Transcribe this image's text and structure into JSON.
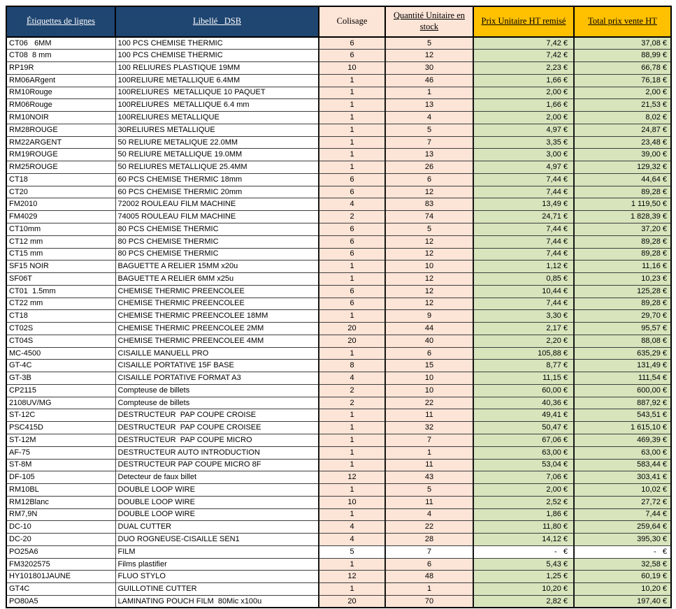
{
  "table": {
    "columns": [
      {
        "label": "Étiquettes de lignes"
      },
      {
        "label": "Libellé _DSB"
      },
      {
        "label": "Colisage"
      },
      {
        "label": "Quantité Unitaire en stock"
      },
      {
        "label": "Prix Unitaire HT remisé"
      },
      {
        "label": "Total prix vente HT"
      }
    ],
    "colors": {
      "header_navy": "#1F4571",
      "header_peach": "#FCE4D6",
      "header_gold": "#FFC000",
      "cell_peach": "#FCE4D6",
      "cell_green": "#D7E4BC"
    },
    "rows": [
      {
        "code": "CT06   6MM",
        "libelle": "100 PCS CHEMISE THERMIC",
        "colisage": "6",
        "quantite": "5",
        "prix": "7,42 €",
        "total": "37,08 €"
      },
      {
        "code": "CT08  8 mm",
        "libelle": "100 PCS CHEMISE THERMIC",
        "colisage": "6",
        "quantite": "12",
        "prix": "7,42 €",
        "total": "88,99 €"
      },
      {
        "code": "RP19R",
        "libelle": "100 RELIURES PLASTIQUE 19MM",
        "colisage": "10",
        "quantite": "30",
        "prix": "2,23 €",
        "total": "66,78 €"
      },
      {
        "code": "RM06ARgent",
        "libelle": "100RELIURE METALLIQUE 6.4MM",
        "colisage": "1",
        "quantite": "46",
        "prix": "1,66 €",
        "total": "76,18 €"
      },
      {
        "code": "RM10Rouge",
        "libelle": "100RELIURES  METALLIQUE 10 PAQUET",
        "colisage": "1",
        "quantite": "1",
        "prix": "2,00 €",
        "total": "2,00 €"
      },
      {
        "code": "RM06Rouge",
        "libelle": "100RELIURES  METALLIQUE 6.4 mm",
        "colisage": "1",
        "quantite": "13",
        "prix": "1,66 €",
        "total": "21,53 €"
      },
      {
        "code": "RM10NOIR",
        "libelle": "100RELIURES METALLIQUE",
        "colisage": "1",
        "quantite": "4",
        "prix": "2,00 €",
        "total": "8,02 €"
      },
      {
        "code": "RM28ROUGE",
        "libelle": "30RELIURES METALLIQUE",
        "colisage": "1",
        "quantite": "5",
        "prix": "4,97 €",
        "total": "24,87 €"
      },
      {
        "code": "RM22ARGENT",
        "libelle": "50 RELIURE METALIQUE 22.0MM",
        "colisage": "1",
        "quantite": "7",
        "prix": "3,35 €",
        "total": "23,48 €"
      },
      {
        "code": "RM19ROUGE",
        "libelle": "50 RELIURE METALLIQUE 19.0MM",
        "colisage": "1",
        "quantite": "13",
        "prix": "3,00 €",
        "total": "39,00 €"
      },
      {
        "code": "RM25ROUGE",
        "libelle": "50 RELIURES METALLIQUE 25.4MM",
        "colisage": "1",
        "quantite": "26",
        "prix": "4,97 €",
        "total": "129,32 €"
      },
      {
        "code": "CT18",
        "libelle": "60 PCS CHEMISE THERMIC 18mm",
        "colisage": "6",
        "quantite": "6",
        "prix": "7,44 €",
        "total": "44,64 €"
      },
      {
        "code": "CT20",
        "libelle": "60 PCS CHEMISE THERMIC 20mm",
        "colisage": "6",
        "quantite": "12",
        "prix": "7,44 €",
        "total": "89,28 €"
      },
      {
        "code": "FM2010",
        "libelle": "72002 ROULEAU FILM MACHINE",
        "colisage": "4",
        "quantite": "83",
        "prix": "13,49 €",
        "total": "1 119,50 €"
      },
      {
        "code": "FM4029",
        "libelle": "74005 ROULEAU FILM MACHINE",
        "colisage": "2",
        "quantite": "74",
        "prix": "24,71 €",
        "total": "1 828,39 €"
      },
      {
        "code": "CT10mm",
        "libelle": "80 PCS CHEMISE THERMIC",
        "colisage": "6",
        "quantite": "5",
        "prix": "7,44 €",
        "total": "37,20 €"
      },
      {
        "code": "CT12 mm",
        "libelle": "80 PCS CHEMISE THERMIC",
        "colisage": "6",
        "quantite": "12",
        "prix": "7,44 €",
        "total": "89,28 €"
      },
      {
        "code": "CT15 mm",
        "libelle": "80 PCS CHEMISE THERMIC",
        "colisage": "6",
        "quantite": "12",
        "prix": "7,44 €",
        "total": "89,28 €"
      },
      {
        "code": "SF15 NOIR",
        "libelle": "BAGUETTE A RELIER 15MM x20u",
        "colisage": "1",
        "quantite": "10",
        "prix": "1,12 €",
        "total": "11,16 €"
      },
      {
        "code": "SF06T",
        "libelle": "BAGUETTE A RELIER 6MM x25u",
        "colisage": "1",
        "quantite": "12",
        "prix": "0,85 €",
        "total": "10,23 €"
      },
      {
        "code": "CT01  1.5mm",
        "libelle": "CHEMISE THERMIC PREENCOLEE",
        "colisage": "6",
        "quantite": "12",
        "prix": "10,44 €",
        "total": "125,28 €"
      },
      {
        "code": "CT22 mm",
        "libelle": "CHEMISE THERMIC PREENCOLEE",
        "colisage": "6",
        "quantite": "12",
        "prix": "7,44 €",
        "total": "89,28 €"
      },
      {
        "code": "CT18",
        "libelle": "CHEMISE THERMIC PREENCOLEE 18MM",
        "colisage": "1",
        "quantite": "9",
        "prix": "3,30 €",
        "total": "29,70 €"
      },
      {
        "code": "CT02S",
        "libelle": "CHEMISE THERMIC PREENCOLEE 2MM",
        "colisage": "20",
        "quantite": "44",
        "prix": "2,17 €",
        "total": "95,57 €"
      },
      {
        "code": "CT04S",
        "libelle": "CHEMISE THERMIC PREENCOLEE 4MM",
        "colisage": "20",
        "quantite": "40",
        "prix": "2,20 €",
        "total": "88,08 €"
      },
      {
        "code": "MC-4500",
        "libelle": "CISAILLE MANUELL PRO",
        "colisage": "1",
        "quantite": "6",
        "prix": "105,88 €",
        "total": "635,29 €"
      },
      {
        "code": "GT-4C",
        "libelle": "CISAILLE PORTATIVE 15F BASE",
        "colisage": "8",
        "quantite": "15",
        "prix": "8,77 €",
        "total": "131,49 €"
      },
      {
        "code": "GT-3B",
        "libelle": "CISAILLE PORTATIVE FORMAT A3",
        "colisage": "4",
        "quantite": "10",
        "prix": "11,15 €",
        "total": "111,54 €"
      },
      {
        "code": "CP2115",
        "libelle": "Compteuse de billets",
        "colisage": "2",
        "quantite": "10",
        "prix": "60,00 €",
        "total": "600,00 €"
      },
      {
        "code": "2108UV/MG",
        "libelle": "Compteuse de billets",
        "colisage": "2",
        "quantite": "22",
        "prix": "40,36 €",
        "total": "887,92 €"
      },
      {
        "code": "ST-12C",
        "libelle": "DESTRUCTEUR  PAP COUPE CROISE",
        "colisage": "1",
        "quantite": "11",
        "prix": "49,41 €",
        "total": "543,51 €"
      },
      {
        "code": "PSC415D",
        "libelle": "DESTRUCTEUR  PAP COUPE CROISEE",
        "colisage": "1",
        "quantite": "32",
        "prix": "50,47 €",
        "total": "1 615,10 €"
      },
      {
        "code": "ST-12M",
        "libelle": "DESTRUCTEUR  PAP COUPE MICRO",
        "colisage": "1",
        "quantite": "7",
        "prix": "67,06 €",
        "total": "469,39 €"
      },
      {
        "code": "AF-75",
        "libelle": "DESTRUCTEUR AUTO INTRODUCTION",
        "colisage": "1",
        "quantite": "1",
        "prix": "63,00 €",
        "total": "63,00 €"
      },
      {
        "code": "ST-8M",
        "libelle": "DESTRUCTEUR PAP COUPE MICRO 8F",
        "colisage": "1",
        "quantite": "11",
        "prix": "53,04 €",
        "total": "583,44 €"
      },
      {
        "code": "DF-105",
        "libelle": "Detecteur de faux billet",
        "colisage": "12",
        "quantite": "43",
        "prix": "7,06 €",
        "total": "303,41 €"
      },
      {
        "code": "RM10BL",
        "libelle": "DOUBLE LOOP WIRE",
        "colisage": "1",
        "quantite": "5",
        "prix": "2,00 €",
        "total": "10,02 €"
      },
      {
        "code": "RM12Blanc",
        "libelle": "DOUBLE LOOP WIRE",
        "colisage": "10",
        "quantite": "11",
        "prix": "2,52 €",
        "total": "27,72 €"
      },
      {
        "code": "RM7,9N",
        "libelle": "DOUBLE LOOP WIRE",
        "colisage": "1",
        "quantite": "4",
        "prix": "1,86 €",
        "total": "7,44 €"
      },
      {
        "code": "DC-10",
        "libelle": "DUAL CUTTER",
        "colisage": "4",
        "quantite": "22",
        "prix": "11,80 €",
        "total": "259,64 €"
      },
      {
        "code": "DC-20",
        "libelle": "DUO ROGNEUSE-CISAILLE SEN1",
        "colisage": "4",
        "quantite": "28",
        "prix": "14,12 €",
        "total": "395,30 €"
      },
      {
        "code": "PO25A6",
        "libelle": "FILM",
        "colisage": "5",
        "quantite": "7",
        "prix": "-   €",
        "total": "-   €",
        "plain": true
      },
      {
        "code": "FM3202575",
        "libelle": "Films plastifier",
        "colisage": "1",
        "quantite": "6",
        "prix": "5,43 €",
        "total": "32,58 €"
      },
      {
        "code": "HY101801JAUNE",
        "libelle": "FLUO STYLO",
        "colisage": "12",
        "quantite": "48",
        "prix": "1,25 €",
        "total": "60,19 €"
      },
      {
        "code": "GT4C",
        "libelle": "GUILLOTINE CUTTER",
        "colisage": "1",
        "quantite": "1",
        "prix": "10,20 €",
        "total": "10,20 €"
      },
      {
        "code": "PO80A5",
        "libelle": "LAMINATING POUCH FILM  80Mic x100u",
        "colisage": "20",
        "quantite": "70",
        "prix": "2,82 €",
        "total": "197,40 €"
      }
    ]
  }
}
